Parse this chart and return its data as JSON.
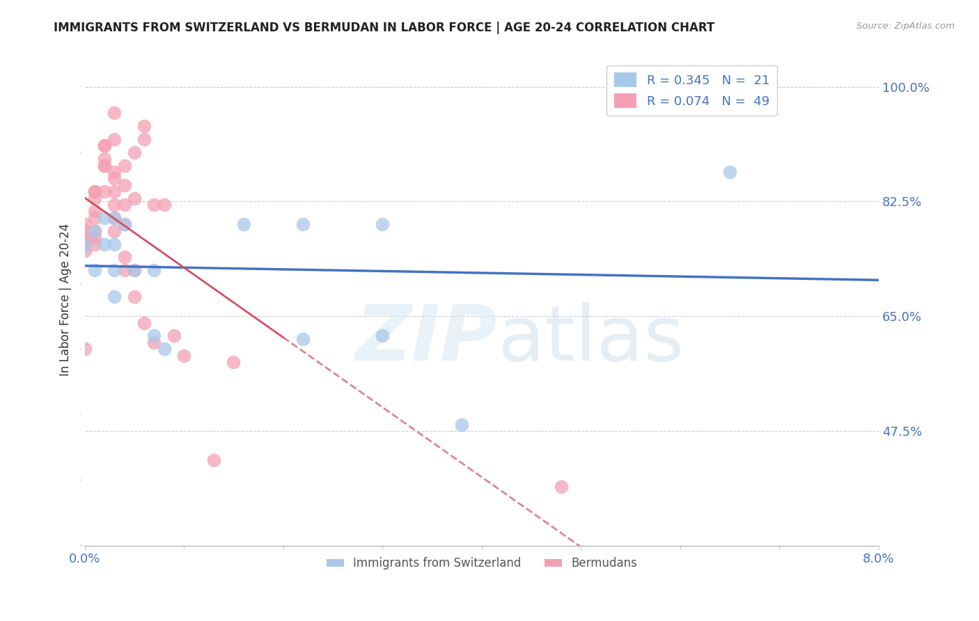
{
  "title": "IMMIGRANTS FROM SWITZERLAND VS BERMUDAN IN LABOR FORCE | AGE 20-24 CORRELATION CHART",
  "source": "Source: ZipAtlas.com",
  "ylabel": "In Labor Force | Age 20-24",
  "xlim": [
    0.0,
    0.08
  ],
  "ylim": [
    0.3,
    1.05
  ],
  "yticks": [
    0.475,
    0.65,
    0.825,
    1.0
  ],
  "ytick_labels": [
    "47.5%",
    "65.0%",
    "82.5%",
    "100.0%"
  ],
  "color_swiss": "#a8c8e8",
  "color_bermuda": "#f4a0b4",
  "color_line_swiss": "#4472c4",
  "color_line_bermuda": "#d45060",
  "swiss_x": [
    0.0,
    0.001,
    0.001,
    0.002,
    0.002,
    0.003,
    0.003,
    0.003,
    0.003,
    0.004,
    0.005,
    0.007,
    0.007,
    0.008,
    0.016,
    0.022,
    0.022,
    0.03,
    0.03,
    0.038,
    0.065
  ],
  "swiss_y": [
    0.76,
    0.72,
    0.78,
    0.76,
    0.8,
    0.8,
    0.76,
    0.72,
    0.68,
    0.79,
    0.72,
    0.72,
    0.62,
    0.6,
    0.79,
    0.79,
    0.615,
    0.79,
    0.62,
    0.485,
    0.87
  ],
  "bermuda_x": [
    0.0,
    0.0,
    0.0,
    0.0,
    0.0,
    0.0,
    0.001,
    0.001,
    0.001,
    0.001,
    0.001,
    0.001,
    0.001,
    0.001,
    0.002,
    0.002,
    0.002,
    0.002,
    0.002,
    0.002,
    0.003,
    0.003,
    0.003,
    0.003,
    0.003,
    0.003,
    0.003,
    0.003,
    0.004,
    0.004,
    0.004,
    0.004,
    0.004,
    0.004,
    0.005,
    0.005,
    0.005,
    0.005,
    0.006,
    0.006,
    0.006,
    0.007,
    0.007,
    0.008,
    0.009,
    0.01,
    0.013,
    0.015,
    0.048
  ],
  "bermuda_y": [
    0.79,
    0.78,
    0.77,
    0.76,
    0.75,
    0.6,
    0.84,
    0.84,
    0.83,
    0.81,
    0.8,
    0.78,
    0.77,
    0.76,
    0.91,
    0.91,
    0.89,
    0.88,
    0.88,
    0.84,
    0.96,
    0.92,
    0.87,
    0.86,
    0.84,
    0.82,
    0.8,
    0.78,
    0.88,
    0.85,
    0.82,
    0.79,
    0.74,
    0.72,
    0.9,
    0.83,
    0.72,
    0.68,
    0.94,
    0.92,
    0.64,
    0.82,
    0.61,
    0.82,
    0.62,
    0.59,
    0.43,
    0.58,
    0.39
  ]
}
